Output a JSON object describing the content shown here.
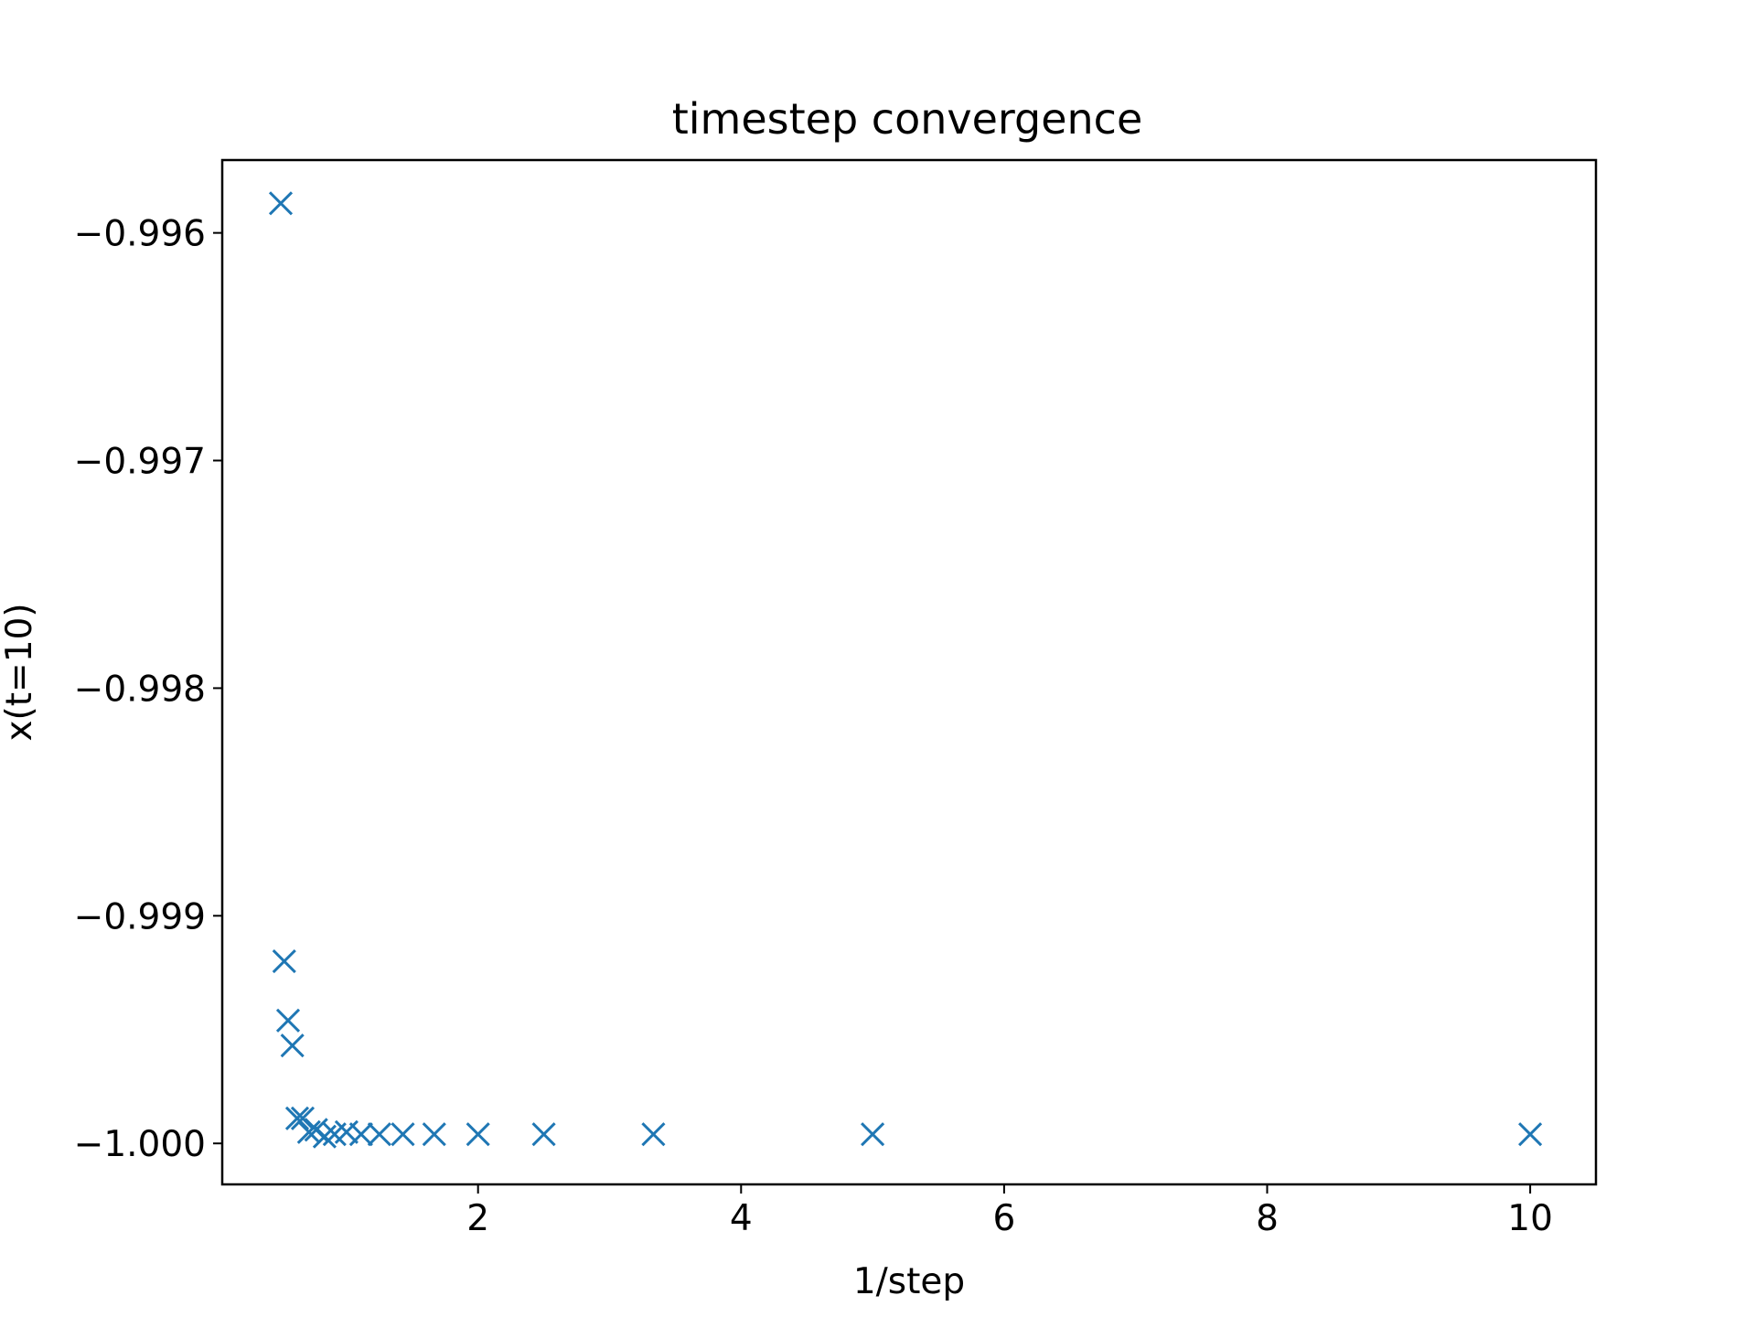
{
  "chart_data": {
    "type": "scatter",
    "title": "timestep convergence",
    "xlabel": "1/step",
    "ylabel": "x(t=10)",
    "xlim": [
      0.055,
      10.5
    ],
    "ylim": [
      -1.00018,
      -0.99568
    ],
    "xticks": [
      2,
      4,
      6,
      8,
      10
    ],
    "xtick_labels": [
      "2",
      "4",
      "6",
      "8",
      "10"
    ],
    "yticks": [
      -1.0,
      -0.999,
      -0.998,
      -0.997,
      -0.996
    ],
    "ytick_labels": [
      "−1.000",
      "−0.999",
      "−0.998",
      "−0.997",
      "−0.996"
    ],
    "grid": false,
    "marker": "x",
    "color": "#1f77b4",
    "x": [
      0.5,
      0.5263,
      0.5556,
      0.5882,
      0.625,
      0.6667,
      0.7143,
      0.7692,
      0.8333,
      0.9091,
      1.0,
      1.1111,
      1.25,
      1.4286,
      1.6667,
      2.0,
      2.5,
      3.3333,
      5.0,
      10.0
    ],
    "y": [
      -0.99587,
      -0.9992,
      -0.99946,
      -0.99957,
      -0.99989,
      -0.99989,
      -0.99995,
      -0.99994,
      -0.99997,
      -0.99996,
      -0.99995,
      -0.99996,
      -0.99996,
      -0.99996,
      -0.99996,
      -0.99996,
      -0.99996,
      -0.99996,
      -0.99996,
      -0.99996
    ]
  }
}
